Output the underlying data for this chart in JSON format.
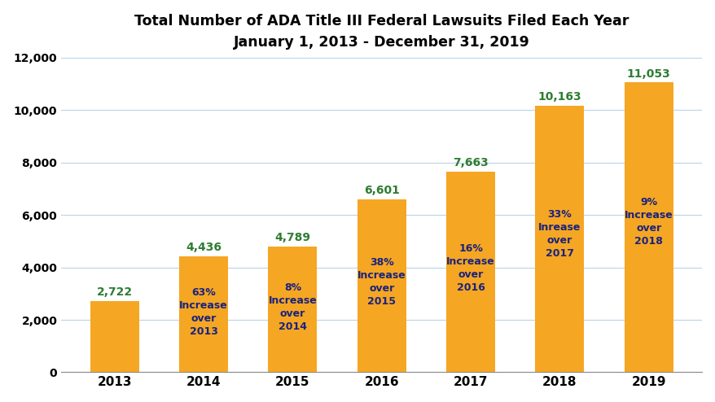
{
  "years": [
    "2013",
    "2014",
    "2015",
    "2016",
    "2017",
    "2018",
    "2019"
  ],
  "values": [
    2722,
    4436,
    4789,
    6601,
    7663,
    10163,
    11053
  ],
  "bar_color": "#F5A623",
  "value_color": "#2E7D32",
  "label_color": "#1A237E",
  "title_line1": "Total Number of ADA Title III Federal Lawsuits Filed Each Year",
  "title_line2": "January 1, 2013 - December 31, 2019",
  "ylim": [
    0,
    12000
  ],
  "yticks": [
    0,
    2000,
    4000,
    6000,
    8000,
    10000,
    12000
  ],
  "grid_color": "#B8D4E8",
  "annotations": [
    {
      "year_idx": 0,
      "text": ""
    },
    {
      "year_idx": 1,
      "text": "63%\nIncrease\nover\n2013"
    },
    {
      "year_idx": 2,
      "text": "8%\nIncrease\nover\n2014"
    },
    {
      "year_idx": 3,
      "text": "38%\nIncrease\nover\n2015"
    },
    {
      "year_idx": 4,
      "text": "16%\nIncrease\nover\n2016"
    },
    {
      "year_idx": 5,
      "text": "33%\nInrease\nover\n2017"
    },
    {
      "year_idx": 6,
      "text": "9%\nIncrease\nover\n2018"
    }
  ]
}
